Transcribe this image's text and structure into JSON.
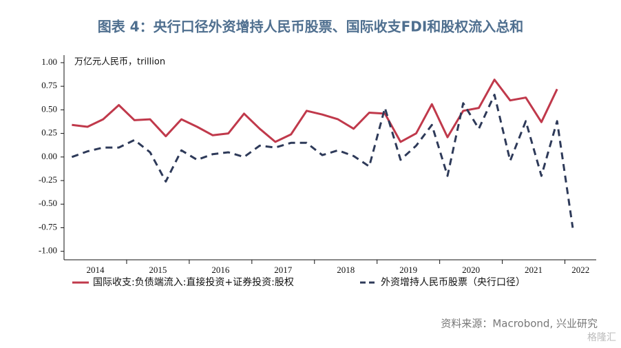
{
  "chart_data": {
    "type": "line",
    "title": "图表 4：央行口径外资增持人民币股票、国际收支FDI和股权流入总和",
    "y_axis_label": "万亿元人民币，trillion",
    "source": "资料来源：Macrobond, 兴业研究",
    "watermark": "格隆汇",
    "year_labels": [
      "2014",
      "2015",
      "2016",
      "2017",
      "2018",
      "2019",
      "2020",
      "2021",
      "2022"
    ],
    "series": [
      {
        "name": "国际收支:负债端流入:直接投资+证券投资:股权",
        "color": "#c0394b",
        "dash": false,
        "values": [
          0.34,
          0.32,
          0.4,
          0.55,
          0.39,
          0.4,
          0.22,
          0.4,
          0.32,
          0.23,
          0.25,
          0.46,
          0.3,
          0.16,
          0.24,
          0.49,
          0.45,
          0.4,
          0.3,
          0.47,
          0.46,
          0.16,
          0.25,
          0.56,
          0.21,
          0.49,
          0.52,
          0.82,
          0.6,
          0.63,
          0.37,
          0.72,
          null
        ]
      },
      {
        "name": "外资增持人民币股票（央行口径）",
        "color": "#2e3a59",
        "dash": true,
        "values": [
          0.0,
          0.06,
          0.1,
          0.1,
          0.18,
          0.05,
          -0.26,
          0.07,
          -0.03,
          0.03,
          0.05,
          0.0,
          0.12,
          0.1,
          0.15,
          0.15,
          0.02,
          0.07,
          0.01,
          -0.1,
          0.52,
          -0.03,
          0.12,
          0.34,
          -0.2,
          0.57,
          0.3,
          0.66,
          -0.04,
          0.38,
          -0.2,
          0.38,
          -0.75
        ]
      }
    ],
    "ylim": [
      -1.09,
      1.08
    ],
    "yticks": [
      {
        "value": 1,
        "label": "1.00"
      },
      {
        "value": 0.75,
        "label": "0.75"
      },
      {
        "value": 0.5,
        "label": "0.50"
      },
      {
        "value": 0.25,
        "label": "0.25"
      },
      {
        "value": 0,
        "label": "0.00"
      },
      {
        "value": -0.25,
        "label": "-0.25"
      },
      {
        "value": -0.5,
        "label": "-0.50"
      },
      {
        "value": -0.75,
        "label": "-0.75"
      },
      {
        "value": -1,
        "label": "-1.00"
      }
    ]
  }
}
